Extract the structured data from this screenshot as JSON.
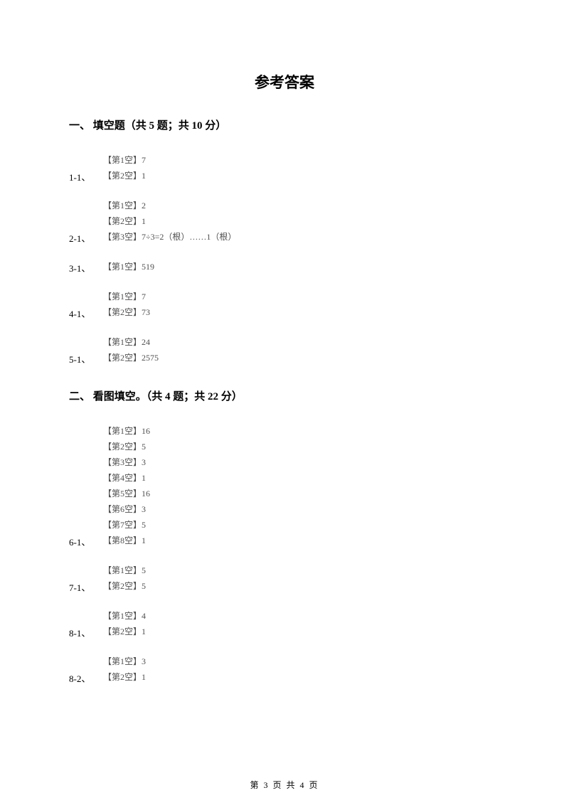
{
  "title": "参考答案",
  "section1": {
    "header": "一、 填空题（共 5 题；共 10 分）",
    "q1": {
      "label": "1-1、",
      "a1": "【第1空】7",
      "a2": "【第2空】1"
    },
    "q2": {
      "label": "2-1、",
      "a1": "【第1空】2",
      "a2": "【第2空】1",
      "a3": "【第3空】7÷3=2（根）……1（根）"
    },
    "q3": {
      "label": "3-1、",
      "a1": "【第1空】519"
    },
    "q4": {
      "label": "4-1、",
      "a1": "【第1空】7",
      "a2": "【第2空】73"
    },
    "q5": {
      "label": "5-1、",
      "a1": "【第1空】24",
      "a2": "【第2空】2575"
    }
  },
  "section2": {
    "header": "二、 看图填空。（共 4 题；共 22 分）",
    "q6": {
      "label": "6-1、",
      "a1": "【第1空】16",
      "a2": "【第2空】5",
      "a3": "【第3空】3",
      "a4": "【第4空】1",
      "a5": "【第5空】16",
      "a6": "【第6空】3",
      "a7": "【第7空】5",
      "a8": "【第8空】1"
    },
    "q7": {
      "label": "7-1、",
      "a1": "【第1空】5",
      "a2": "【第2空】5"
    },
    "q8a": {
      "label": "8-1、",
      "a1": "【第1空】4",
      "a2": "【第2空】1"
    },
    "q8b": {
      "label": "8-2、",
      "a1": "【第1空】3",
      "a2": "【第2空】1"
    }
  },
  "footer": "第 3 页 共 4 页"
}
